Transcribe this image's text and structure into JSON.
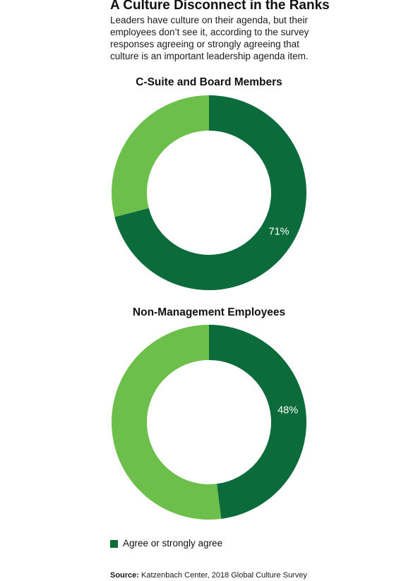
{
  "title": "A Culture Disconnect in the Ranks",
  "subtitle": "Leaders have culture on their agenda, but their employees don’t see it, according to the survey responses agreeing or strongly agreeing that culture is an important leadership agenda item.",
  "colors": {
    "agree": "#0b6b3a",
    "other": "#6cbf4a"
  },
  "chart_data": [
    {
      "type": "pie",
      "title": "C-Suite and Board Members",
      "slices": [
        {
          "label": "Agree or strongly agree",
          "value": 71,
          "display": "71%"
        },
        {
          "label": "",
          "value": 29,
          "display": ""
        }
      ]
    },
    {
      "type": "pie",
      "title": "Non-Management Employees",
      "slices": [
        {
          "label": "Agree or strongly agree",
          "value": 48,
          "display": "48%"
        },
        {
          "label": "",
          "value": 52,
          "display": ""
        }
      ]
    }
  ],
  "legend": {
    "label": "Agree or strongly agree"
  },
  "source": {
    "label": "Source:",
    "text": "Katzenbach Center, 2018 Global Culture Survey"
  }
}
